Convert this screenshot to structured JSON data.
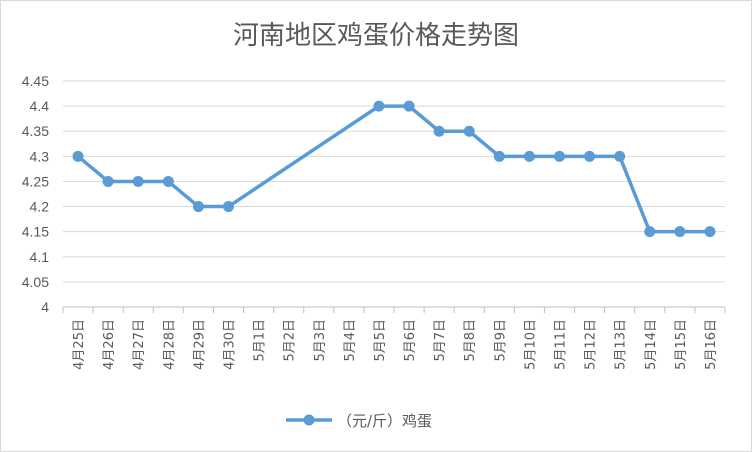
{
  "chart_data": {
    "type": "line",
    "title": "河南地区鸡蛋价格走势图",
    "xlabel": "",
    "ylabel": "",
    "ylim": [
      4,
      4.45
    ],
    "yticks": [
      "4",
      "4.05",
      "4.1",
      "4.15",
      "4.2",
      "4.25",
      "4.3",
      "4.35",
      "4.4",
      "4.45"
    ],
    "categories": [
      "4月25日",
      "4月26日",
      "4月27日",
      "4月28日",
      "4月29日",
      "4月30日",
      "5月1日",
      "5月2日",
      "5月3日",
      "5月4日",
      "5月5日",
      "5月6日",
      "5月7日",
      "5月8日",
      "5月9日",
      "5月10日",
      "5月11日",
      "5月12日",
      "5月13日",
      "5月14日",
      "5月15日",
      "5月16日"
    ],
    "series": [
      {
        "name": "（元/斤）鸡蛋",
        "color": "#5b9bd5",
        "values": [
          4.3,
          4.25,
          4.25,
          4.25,
          4.2,
          4.2,
          null,
          null,
          null,
          null,
          4.4,
          4.4,
          4.35,
          4.35,
          4.3,
          4.3,
          4.3,
          4.3,
          4.3,
          4.15,
          4.15,
          4.15
        ]
      }
    ],
    "grid": true,
    "legend": "bottom"
  }
}
